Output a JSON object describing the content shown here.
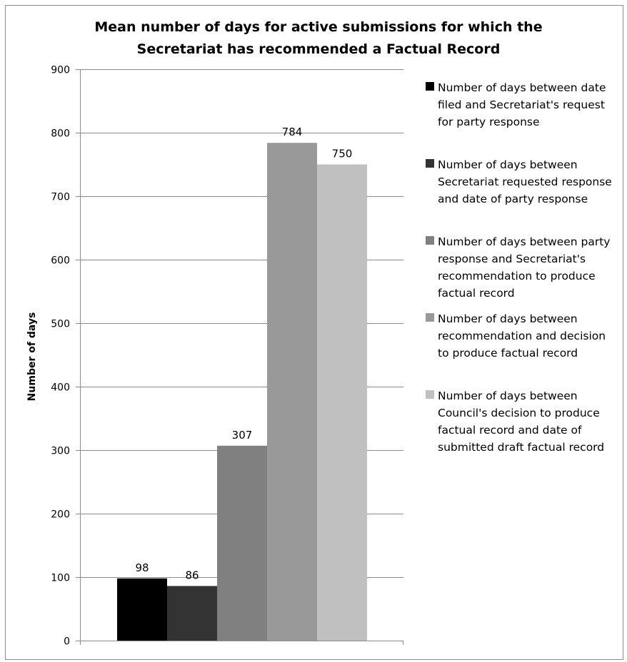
{
  "chart_data": {
    "type": "bar",
    "title": "Mean number of days for active submissions for which the Secretariat has recommended a Factual Record",
    "title_lines": [
      "Mean number of days for active submissions for which the",
      "Secretariat has recommended a Factual Record"
    ],
    "xlabel": "",
    "ylabel": "Number of days",
    "ylim": [
      0,
      900
    ],
    "yticks": [
      0,
      100,
      200,
      300,
      400,
      500,
      600,
      700,
      800,
      900
    ],
    "grid": true,
    "legend_position": "right",
    "series": [
      {
        "name": "Number of days between date filed and Secretariat's request for party response",
        "legend_lines": [
          "Number of days between date",
          "filed and Secretariat's request",
          "for party response"
        ],
        "values": [
          98
        ],
        "color": "#000000"
      },
      {
        "name": "Number of days between Secretariat requested response and date of party response",
        "legend_lines": [
          "Number of days between",
          "Secretariat requested response",
          "and date of party response"
        ],
        "values": [
          86
        ],
        "color": "#333333"
      },
      {
        "name": "Number of days between party response and Secretariat's recommendation to produce factual record",
        "legend_lines": [
          "Number of days between party",
          "response and Secretariat's",
          "recommendation to produce",
          "factual record"
        ],
        "values": [
          307
        ],
        "color": "#808080"
      },
      {
        "name": "Number of days between recommendation and decision to produce factual record",
        "legend_lines": [
          "Number of days between",
          "recommendation and decision",
          "to produce factual record"
        ],
        "values": [
          784
        ],
        "color": "#999999"
      },
      {
        "name": "Number of days between Council's decision to produce factual record and date of submitted draft factual record",
        "legend_lines": [
          "Number of days between",
          "Council's decision to produce",
          "factual record and date of",
          "submitted draft factual record"
        ],
        "values": [
          750
        ],
        "color": "#c0c0c0"
      }
    ]
  }
}
